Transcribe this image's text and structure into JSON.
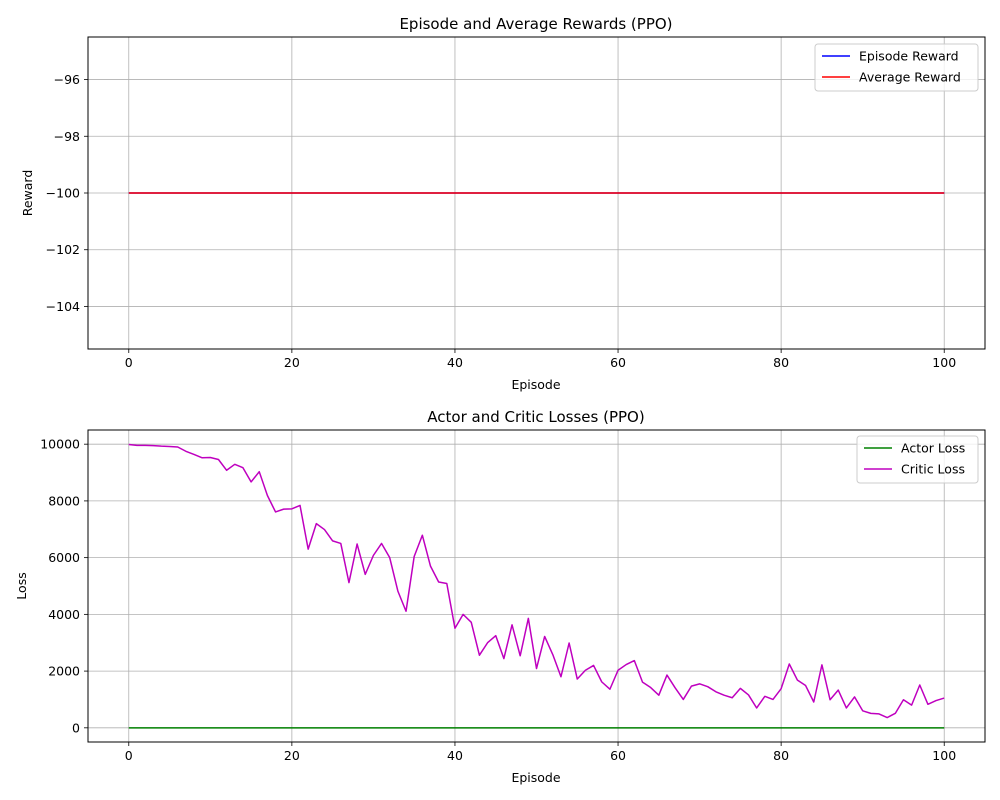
{
  "chart_data": [
    {
      "type": "line",
      "title": "Episode and Average Rewards (PPO)",
      "xlabel": "Episode",
      "ylabel": "Reward",
      "xlim": [
        -5,
        105
      ],
      "ylim": [
        -105.5,
        -94.5
      ],
      "xticks": [
        0,
        20,
        40,
        60,
        80,
        100
      ],
      "yticks": [
        -104,
        -102,
        -100,
        -98,
        -96
      ],
      "xtick_labels": [
        "0",
        "20",
        "40",
        "60",
        "80",
        "100"
      ],
      "ytick_labels": [
        "−104",
        "−102",
        "−100",
        "−98",
        "−96"
      ],
      "grid": true,
      "legend_position": "upper right",
      "series": [
        {
          "name": "Episode Reward",
          "color": "#0000ff",
          "x": [
            0,
            100
          ],
          "values": [
            -100,
            -100
          ]
        },
        {
          "name": "Average Reward",
          "color": "#ff0000",
          "x": [
            0,
            100
          ],
          "values": [
            -100,
            -100
          ]
        }
      ]
    },
    {
      "type": "line",
      "title": "Actor and Critic Losses (PPO)",
      "xlabel": "Episode",
      "ylabel": "Loss",
      "xlim": [
        -5,
        105
      ],
      "ylim": [
        -500,
        10500
      ],
      "xticks": [
        0,
        20,
        40,
        60,
        80,
        100
      ],
      "yticks": [
        0,
        2000,
        4000,
        6000,
        8000,
        10000
      ],
      "xtick_labels": [
        "0",
        "20",
        "40",
        "60",
        "80",
        "100"
      ],
      "ytick_labels": [
        "0",
        "2000",
        "4000",
        "6000",
        "8000",
        "10000"
      ],
      "grid": true,
      "legend_position": "upper right",
      "series": [
        {
          "name": "Actor Loss",
          "color": "#008000",
          "x": [
            0,
            100
          ],
          "values": [
            0,
            0
          ]
        },
        {
          "name": "Critic Loss",
          "color": "#bf00bf",
          "x": [
            0,
            1,
            2,
            3,
            4,
            5,
            6,
            7,
            8,
            9,
            10,
            11,
            12,
            13,
            14,
            15,
            16,
            17,
            18,
            19,
            20,
            21,
            22,
            23,
            24,
            25,
            26,
            27,
            28,
            29,
            30,
            31,
            32,
            33,
            34,
            35,
            36,
            37,
            38,
            39,
            40,
            41,
            42,
            43,
            44,
            45,
            46,
            47,
            48,
            49,
            50,
            51,
            52,
            53,
            54,
            55,
            56,
            57,
            58,
            59,
            60,
            61,
            62,
            63,
            64,
            65,
            66,
            67,
            68,
            69,
            70,
            71,
            72,
            73,
            74,
            75,
            76,
            77,
            78,
            79,
            80,
            81,
            82,
            83,
            84,
            85,
            86,
            87,
            88,
            89,
            90,
            91,
            92,
            93,
            94,
            95,
            96,
            97,
            98,
            99,
            100
          ],
          "values": [
            9990,
            9960,
            9960,
            9950,
            9930,
            9920,
            9900,
            9750,
            9640,
            9520,
            9530,
            9460,
            9080,
            9290,
            9170,
            8670,
            9030,
            8190,
            7610,
            7710,
            7720,
            7840,
            6300,
            7200,
            6990,
            6590,
            6500,
            5120,
            6480,
            5410,
            6080,
            6500,
            6000,
            4820,
            4110,
            6040,
            6790,
            5700,
            5140,
            5090,
            3510,
            4000,
            3720,
            2560,
            3000,
            3250,
            2440,
            3630,
            2540,
            3860,
            2090,
            3220,
            2580,
            1800,
            2990,
            1720,
            2030,
            2200,
            1620,
            1360,
            2030,
            2230,
            2370,
            1610,
            1420,
            1150,
            1860,
            1410,
            1000,
            1470,
            1550,
            1450,
            1270,
            1150,
            1060,
            1390,
            1160,
            700,
            1110,
            1000,
            1380,
            2250,
            1680,
            1490,
            910,
            2220,
            990,
            1330,
            700,
            1090,
            600,
            510,
            490,
            360,
            510,
            990,
            800,
            1510,
            830,
            960,
            1050
          ]
        }
      ]
    }
  ]
}
